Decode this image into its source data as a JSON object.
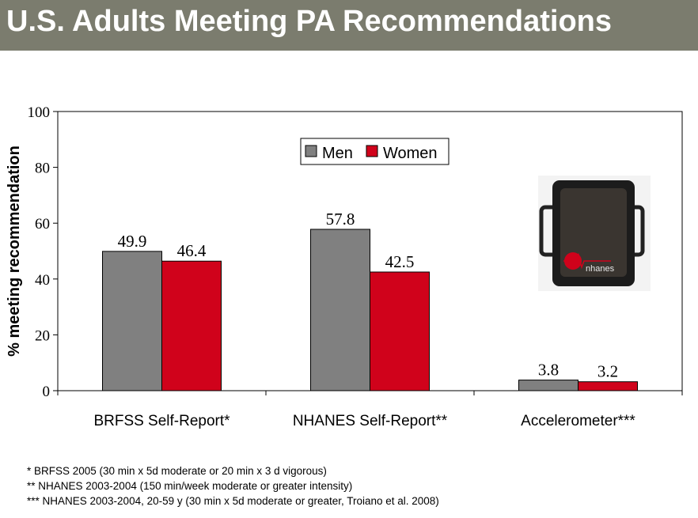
{
  "title": "U.S. Adults Meeting PA Recommendations",
  "chart_data": {
    "type": "bar",
    "categories": [
      "BRFSS Self-Report*",
      "NHANES Self-Report**",
      "Accelerometer***"
    ],
    "series": [
      {
        "name": "Men",
        "values": [
          49.9,
          57.8,
          3.8
        ],
        "color": "#808080"
      },
      {
        "name": "Women",
        "values": [
          46.4,
          42.5,
          3.2
        ],
        "color": "#d0021b"
      }
    ],
    "data_labels": [
      [
        "49.9",
        "57.8",
        "3.8"
      ],
      [
        "46.4",
        "42.5",
        "3.2"
      ]
    ],
    "ylabel": "% meeting recommendation",
    "xlabel": "",
    "ylim": [
      0,
      100
    ],
    "yticks": [
      0,
      20,
      40,
      60,
      80,
      100
    ],
    "grid": false,
    "legend_position": "top-center"
  },
  "device_image": {
    "icon": "accelerometer-device",
    "brand_text": "nhanes"
  },
  "footnotes": [
    "*   BRFSS 2005 (30 min x 5d moderate or 20 min x 3 d vigorous)",
    "**  NHANES 2003-2004 (150 min/week moderate or greater intensity)",
    "*** NHANES 2003-2004, 20-59 y (30 min x 5d moderate or greater, Troiano et al. 2008)"
  ]
}
